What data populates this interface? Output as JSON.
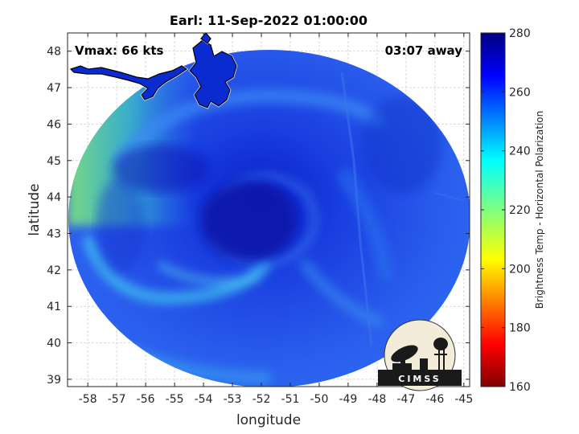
{
  "chart_data": {
    "type": "heatmap",
    "title": "Earl: 11-Sep-2022 01:00:00",
    "xlabel": "longitude",
    "ylabel": "latitude",
    "xlim": [
      -58.7,
      -44.8
    ],
    "ylim": [
      38.8,
      48.5
    ],
    "xticks": [
      -58,
      -57,
      -56,
      -55,
      -54,
      -53,
      -52,
      -51,
      -50,
      -49,
      -48,
      -47,
      -46,
      -45
    ],
    "yticks": [
      39,
      40,
      41,
      42,
      43,
      44,
      45,
      46,
      47,
      48
    ],
    "grid": true,
    "colorbar": {
      "label": "Brightness Temp - Horizontal Polarization",
      "range": [
        160,
        280
      ],
      "ticks": [
        160,
        180,
        200,
        220,
        240,
        260,
        280
      ],
      "colormap": "jet"
    },
    "annotations": {
      "top_left": "Vmax: 66 kts",
      "top_right": "03:07 away"
    },
    "storm_center": {
      "lon": -52.4,
      "lat": 43.7
    }
  },
  "logo": {
    "text": "CIMSS"
  }
}
